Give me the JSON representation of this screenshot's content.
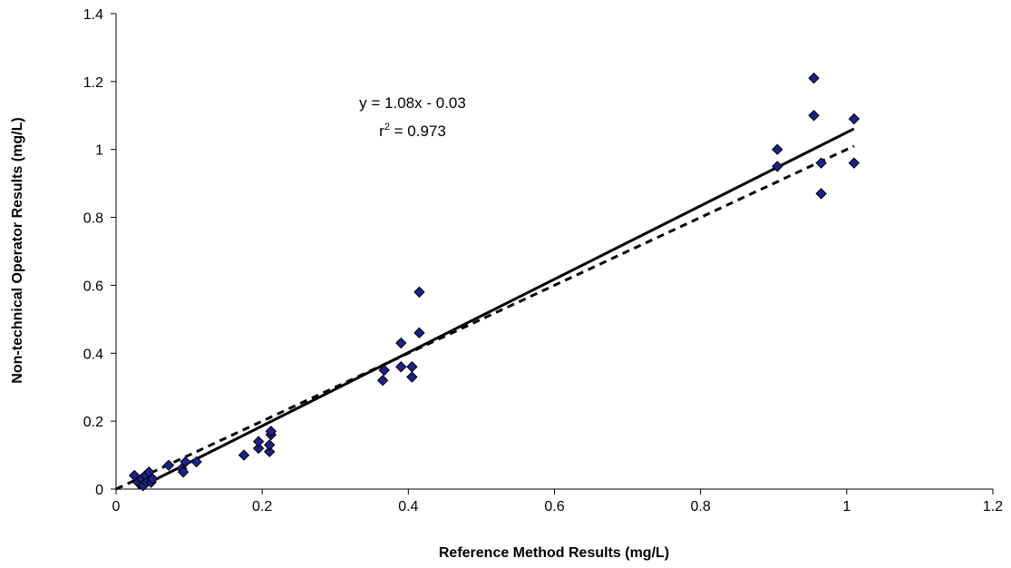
{
  "chart_data": {
    "type": "scatter",
    "title": "",
    "xlabel": "Reference Method Results (mg/L)",
    "ylabel": "Non-technical Operator Results (mg/L)",
    "xlim": [
      0,
      1.2
    ],
    "ylim": [
      0,
      1.4
    ],
    "x_ticks": [
      "0",
      "0.2",
      "0.4",
      "0.6",
      "0.8",
      "1",
      "1.2"
    ],
    "y_ticks": [
      "0",
      "0.2",
      "0.4",
      "0.6",
      "0.8",
      "1",
      "1.2",
      "1.4"
    ],
    "grid": false,
    "legend": "none",
    "marker": {
      "shape": "diamond",
      "fill": "#1F1F8F",
      "stroke": "#000000"
    },
    "points": [
      {
        "x": 0.025,
        "y": 0.04
      },
      {
        "x": 0.03,
        "y": 0.02
      },
      {
        "x": 0.035,
        "y": 0.03
      },
      {
        "x": 0.037,
        "y": 0.01
      },
      {
        "x": 0.04,
        "y": 0.04
      },
      {
        "x": 0.042,
        "y": 0.02
      },
      {
        "x": 0.045,
        "y": 0.05
      },
      {
        "x": 0.048,
        "y": 0.02
      },
      {
        "x": 0.05,
        "y": 0.03
      },
      {
        "x": 0.072,
        "y": 0.07
      },
      {
        "x": 0.09,
        "y": 0.06
      },
      {
        "x": 0.092,
        "y": 0.05
      },
      {
        "x": 0.095,
        "y": 0.08
      },
      {
        "x": 0.11,
        "y": 0.08
      },
      {
        "x": 0.175,
        "y": 0.1
      },
      {
        "x": 0.195,
        "y": 0.12
      },
      {
        "x": 0.195,
        "y": 0.14
      },
      {
        "x": 0.21,
        "y": 0.11
      },
      {
        "x": 0.21,
        "y": 0.13
      },
      {
        "x": 0.212,
        "y": 0.16
      },
      {
        "x": 0.212,
        "y": 0.17
      },
      {
        "x": 0.365,
        "y": 0.32
      },
      {
        "x": 0.367,
        "y": 0.35
      },
      {
        "x": 0.39,
        "y": 0.43
      },
      {
        "x": 0.39,
        "y": 0.36
      },
      {
        "x": 0.405,
        "y": 0.36
      },
      {
        "x": 0.405,
        "y": 0.33
      },
      {
        "x": 0.415,
        "y": 0.58
      },
      {
        "x": 0.415,
        "y": 0.46
      },
      {
        "x": 0.905,
        "y": 1.0
      },
      {
        "x": 0.905,
        "y": 0.95
      },
      {
        "x": 0.955,
        "y": 1.21
      },
      {
        "x": 0.955,
        "y": 1.1
      },
      {
        "x": 0.965,
        "y": 0.96
      },
      {
        "x": 0.965,
        "y": 0.87
      },
      {
        "x": 1.01,
        "y": 1.09
      },
      {
        "x": 1.01,
        "y": 0.96
      }
    ],
    "lines": [
      {
        "style": "solid",
        "x": [
          0.03,
          1.01
        ],
        "y": [
          0.0024,
          1.0608
        ]
      },
      {
        "style": "dashed",
        "x": [
          0.0,
          1.01
        ],
        "y": [
          0.0,
          1.01
        ]
      }
    ],
    "annotations": {
      "equation": "y = 1.08x - 0.03",
      "r_squared_prefix": "r",
      "r_squared_exp": "2",
      "r_squared_value": " = 0.973"
    }
  }
}
